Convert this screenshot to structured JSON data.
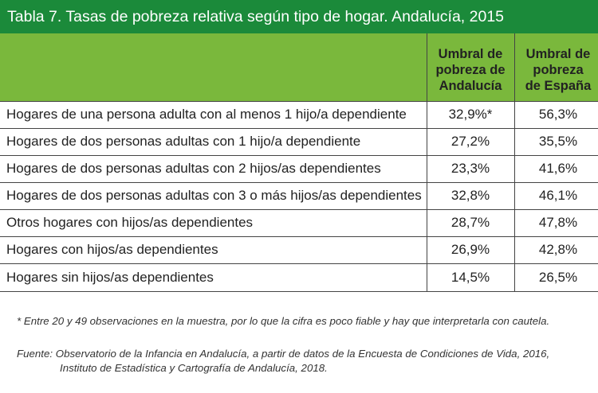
{
  "title": "Tabla 7. Tasas de pobreza relativa según tipo de hogar. Andalucía, 2015",
  "columns": {
    "andalucia": [
      "Umbral de",
      "pobreza de",
      "Andalucía"
    ],
    "espana": [
      "Umbral de",
      "pobreza",
      "de España"
    ]
  },
  "rows": [
    {
      "label": "Hogares de una persona adulta con al menos 1 hijo/a dependiente",
      "andalucia": "32,9%*",
      "espana": "56,3%"
    },
    {
      "label": "Hogares de dos personas adultas con 1 hijo/a dependiente",
      "andalucia": "27,2%",
      "espana": "35,5%"
    },
    {
      "label": "Hogares de dos personas adultas con 2 hijos/as dependientes",
      "andalucia": "23,3%",
      "espana": "41,6%"
    },
    {
      "label": "Hogares de dos personas adultas con 3 o más hijos/as dependientes",
      "andalucia": "32,8%",
      "espana": "46,1%"
    },
    {
      "label": "Otros hogares con hijos/as dependientes",
      "andalucia": "28,7%",
      "espana": "47,8%"
    },
    {
      "label": "Hogares con hijos/as dependientes",
      "andalucia": "26,9%",
      "espana": "42,8%"
    },
    {
      "label": "Hogares sin hijos/as dependientes",
      "andalucia": "14,5%",
      "espana": "26,5%"
    }
  ],
  "note": "* Entre 20 y 49 observaciones en la muestra, por lo que la cifra es poco fiable y hay que interpretarla con cautela.",
  "source": [
    "Fuente: Observatorio de la Infancia en Andalucía, a partir de datos de la Encuesta de Condiciones de Vida, 2016,",
    "Instituto de Estadística y Cartografía de Andalucía, 2018."
  ],
  "colors": {
    "title_bar": "#1b8a3a",
    "header_band": "#7ab83c",
    "lines": "#444444"
  }
}
